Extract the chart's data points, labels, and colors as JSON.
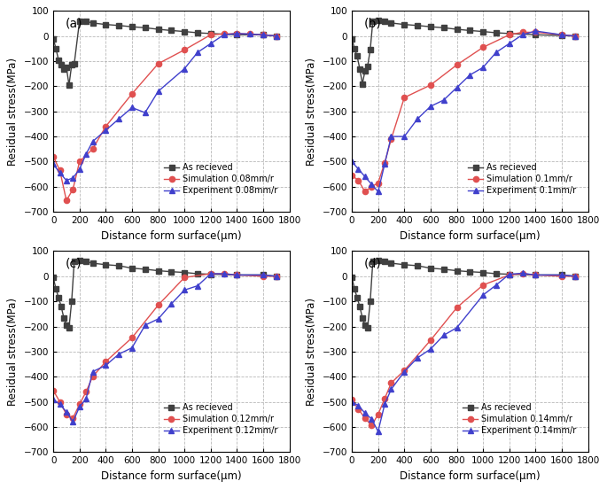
{
  "panels": [
    {
      "label": "(a)",
      "sim_label": "Simulation 0.08mm/r",
      "exp_label": "Experiment 0.08mm/r",
      "as_received_x": [
        0,
        20,
        40,
        60,
        80,
        100,
        120,
        140,
        160,
        200,
        250,
        300,
        400,
        500,
        600,
        700,
        800,
        900,
        1000,
        1100,
        1200,
        1400,
        1600,
        1700
      ],
      "as_received_y": [
        -10,
        -50,
        -95,
        -115,
        -130,
        -125,
        -195,
        -115,
        -110,
        60,
        58,
        52,
        46,
        42,
        37,
        33,
        27,
        22,
        18,
        13,
        10,
        5,
        5,
        0
      ],
      "sim_x": [
        0,
        50,
        100,
        150,
        200,
        300,
        400,
        600,
        800,
        1000,
        1200,
        1300,
        1400,
        1500,
        1600,
        1700
      ],
      "sim_y": [
        -480,
        -535,
        -655,
        -610,
        -500,
        -450,
        -360,
        -230,
        -110,
        -55,
        5,
        8,
        10,
        8,
        5,
        0
      ],
      "exp_x": [
        0,
        50,
        100,
        150,
        200,
        250,
        300,
        400,
        500,
        600,
        700,
        800,
        1000,
        1100,
        1200,
        1300,
        1400,
        1500,
        1600,
        1700
      ],
      "exp_y": [
        -510,
        -545,
        -575,
        -565,
        -530,
        -470,
        -420,
        -375,
        -330,
        -285,
        -305,
        -220,
        -130,
        -65,
        -30,
        5,
        10,
        8,
        5,
        0
      ]
    },
    {
      "label": "(b)",
      "sim_label": "Simulation 0.1mm/r",
      "exp_label": "Experiment 0.1mm/r",
      "as_received_x": [
        0,
        20,
        40,
        60,
        80,
        100,
        120,
        140,
        160,
        200,
        250,
        300,
        400,
        500,
        600,
        700,
        800,
        900,
        1000,
        1100,
        1200,
        1400,
        1600,
        1700
      ],
      "as_received_y": [
        -10,
        -50,
        -80,
        -130,
        -190,
        -140,
        -120,
        -55,
        60,
        63,
        58,
        52,
        46,
        42,
        37,
        33,
        27,
        22,
        18,
        13,
        10,
        5,
        2,
        0
      ],
      "sim_x": [
        0,
        50,
        100,
        150,
        200,
        250,
        300,
        400,
        600,
        800,
        1000,
        1200,
        1300,
        1400,
        1600,
        1700
      ],
      "sim_y": [
        -555,
        -575,
        -620,
        -600,
        -585,
        -505,
        -410,
        -245,
        -195,
        -115,
        -45,
        5,
        15,
        15,
        5,
        0
      ],
      "exp_x": [
        0,
        50,
        100,
        150,
        200,
        250,
        300,
        400,
        500,
        600,
        700,
        800,
        900,
        1000,
        1100,
        1200,
        1300,
        1400,
        1600,
        1700
      ],
      "exp_y": [
        -500,
        -530,
        -560,
        -590,
        -620,
        -510,
        -400,
        -400,
        -330,
        -280,
        -255,
        -205,
        -155,
        -125,
        -65,
        -30,
        5,
        20,
        5,
        0
      ]
    },
    {
      "label": "(c)",
      "sim_label": "Simulation 0.12mm/r",
      "exp_label": "Experiment 0.12mm/r",
      "as_received_x": [
        0,
        20,
        40,
        60,
        80,
        100,
        120,
        140,
        160,
        200,
        250,
        300,
        400,
        500,
        600,
        700,
        800,
        900,
        1000,
        1100,
        1200,
        1400,
        1600,
        1700
      ],
      "as_received_y": [
        -5,
        -50,
        -85,
        -120,
        -165,
        -195,
        -205,
        -100,
        60,
        63,
        58,
        52,
        46,
        42,
        32,
        28,
        22,
        18,
        15,
        10,
        8,
        5,
        5,
        0
      ],
      "sim_x": [
        0,
        50,
        100,
        150,
        200,
        250,
        300,
        400,
        600,
        800,
        1000,
        1200,
        1300,
        1400,
        1600,
        1700
      ],
      "sim_y": [
        -455,
        -500,
        -550,
        -565,
        -510,
        -460,
        -400,
        -340,
        -245,
        -115,
        -5,
        10,
        10,
        5,
        0,
        0
      ],
      "exp_x": [
        0,
        50,
        100,
        150,
        200,
        250,
        300,
        400,
        500,
        600,
        700,
        800,
        900,
        1000,
        1100,
        1200,
        1300,
        1400,
        1600,
        1700
      ],
      "exp_y": [
        -490,
        -510,
        -540,
        -580,
        -520,
        -488,
        -380,
        -355,
        -310,
        -285,
        -195,
        -170,
        -110,
        -55,
        -38,
        10,
        10,
        5,
        5,
        0
      ]
    },
    {
      "label": "(d)",
      "sim_label": "Simulation 0.14mm/r",
      "exp_label": "Experiment 0.14mm/r",
      "as_received_x": [
        0,
        20,
        40,
        60,
        80,
        100,
        120,
        140,
        160,
        200,
        250,
        300,
        400,
        500,
        600,
        700,
        800,
        900,
        1000,
        1100,
        1200,
        1400,
        1600,
        1700
      ],
      "as_received_y": [
        -5,
        -50,
        -85,
        -120,
        -165,
        -195,
        -205,
        -100,
        60,
        63,
        58,
        52,
        46,
        42,
        32,
        28,
        22,
        18,
        15,
        10,
        8,
        5,
        5,
        0
      ],
      "sim_x": [
        0,
        50,
        100,
        150,
        200,
        250,
        300,
        400,
        600,
        800,
        1000,
        1200,
        1300,
        1400,
        1600,
        1700
      ],
      "sim_y": [
        -490,
        -530,
        -565,
        -595,
        -550,
        -488,
        -425,
        -375,
        -255,
        -125,
        -35,
        5,
        10,
        5,
        0,
        0
      ],
      "exp_x": [
        0,
        50,
        100,
        150,
        200,
        250,
        300,
        400,
        500,
        600,
        700,
        800,
        1000,
        1100,
        1200,
        1300,
        1400,
        1600,
        1700
      ],
      "exp_y": [
        -500,
        -515,
        -545,
        -568,
        -618,
        -510,
        -450,
        -380,
        -325,
        -290,
        -235,
        -205,
        -75,
        -35,
        8,
        12,
        5,
        5,
        0
      ]
    }
  ],
  "as_received_label": "As recieved",
  "xlim": [
    0,
    1800
  ],
  "ylim": [
    -700,
    100
  ],
  "xticks": [
    0,
    200,
    400,
    600,
    800,
    1000,
    1200,
    1400,
    1600,
    1800
  ],
  "yticks": [
    -700,
    -600,
    -500,
    -400,
    -300,
    -200,
    -100,
    0,
    100
  ],
  "xlabel": "Distance form surface(μm)",
  "ylabel": "Residual stress(MPa)",
  "as_received_color": "#404040",
  "sim_color": "#e05050",
  "exp_color": "#4040cc",
  "grid_color": "#b0b0b0",
  "marker_as": "s",
  "marker_sim": "o",
  "marker_exp": "^",
  "marker_size": 4.5,
  "linewidth": 1.0,
  "legend_fontsize": 7.0,
  "tick_fontsize": 7.5,
  "label_fontsize": 8.5,
  "panel_label_fontsize": 10
}
